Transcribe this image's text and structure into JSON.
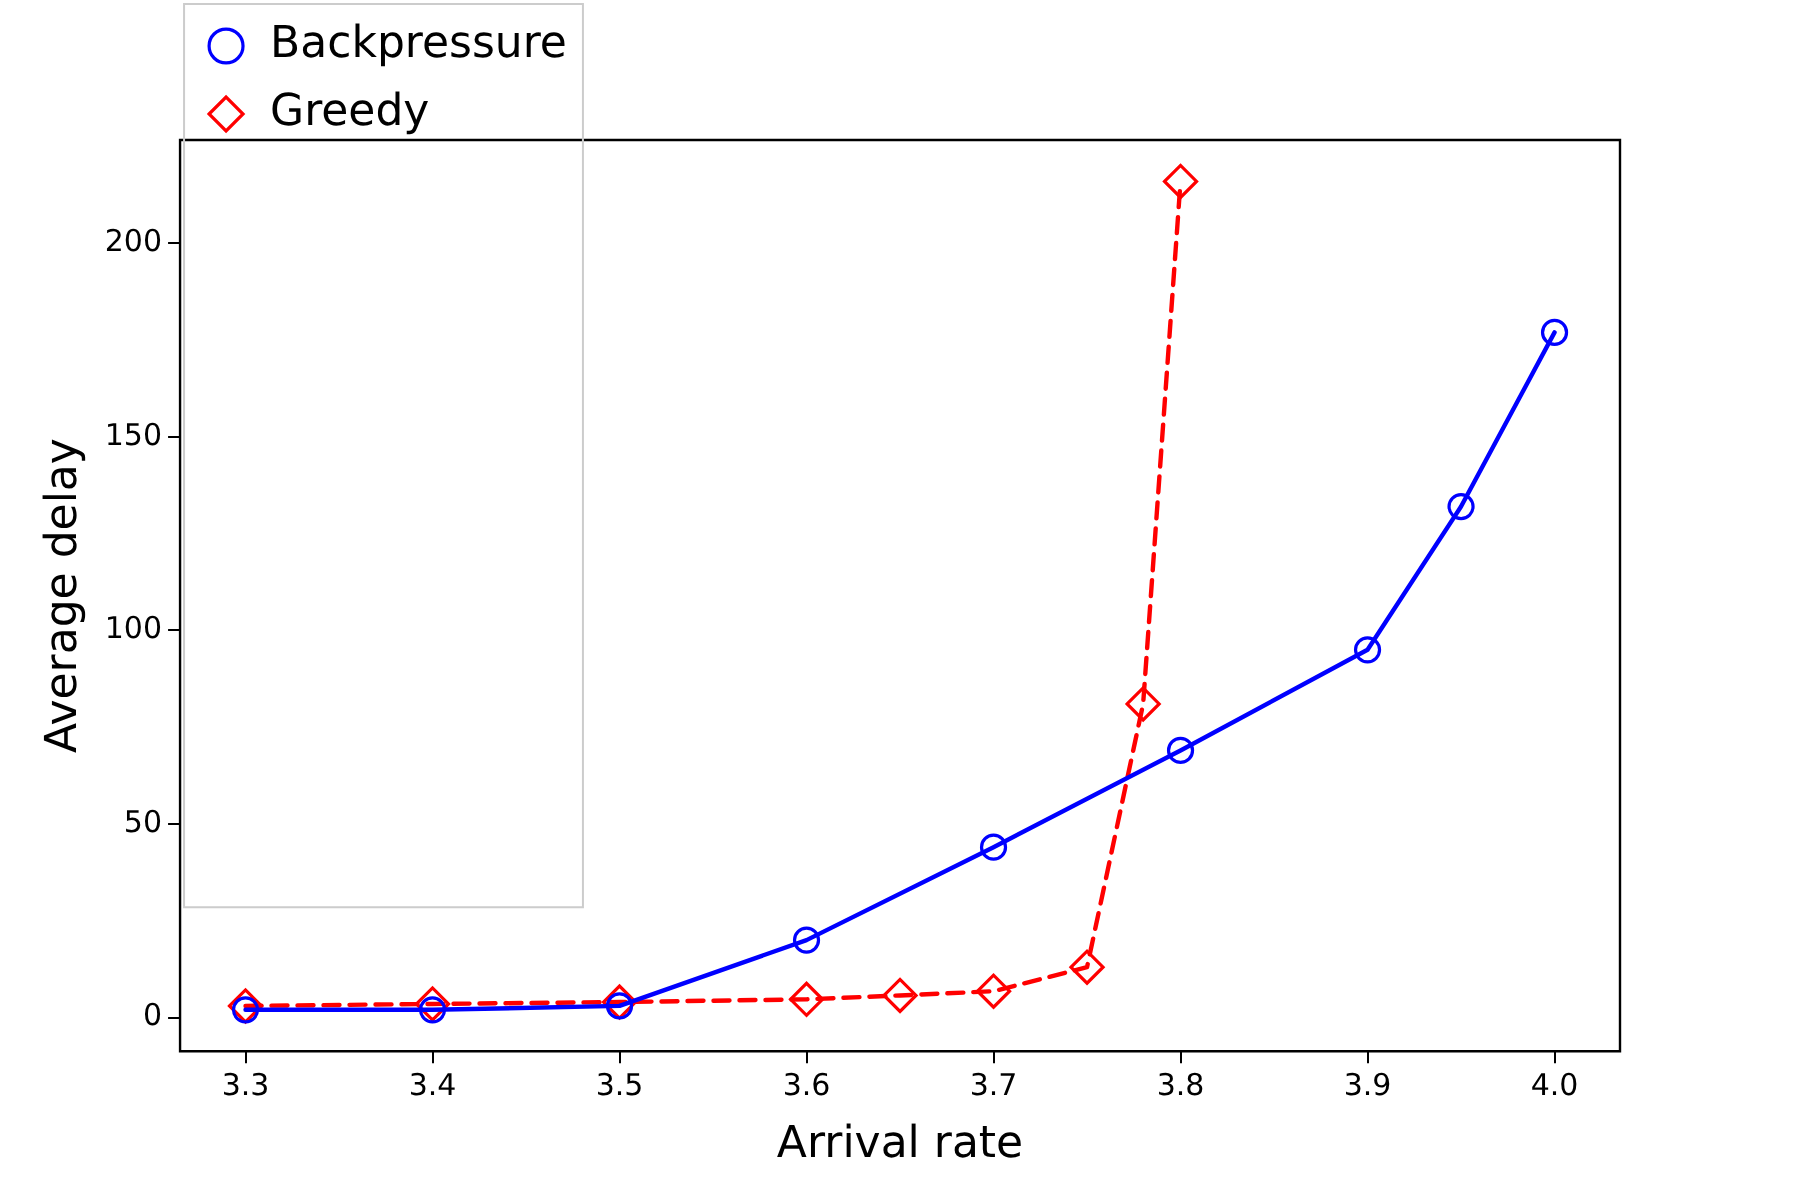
{
  "chart_data": {
    "type": "line",
    "xlabel": "Arrival rate",
    "ylabel": "Average delay",
    "xlim": [
      3.265,
      4.035
    ],
    "xticks": [
      3.3,
      3.4,
      3.5,
      3.6,
      3.7,
      3.8,
      3.9,
      {
        "value": 4,
        "label": "4.0"
      }
    ],
    "ylim": [
      -8.7,
      226.7
    ],
    "yticks": [
      0,
      50,
      100,
      150,
      200
    ],
    "grid": false,
    "legend": "top left",
    "series": [
      {
        "name": "Backpressure",
        "color": "#0000ff",
        "marker": "circle",
        "line_style": "solid",
        "x": [
          3.3,
          3.4,
          3.5,
          3.6,
          3.7,
          3.8,
          3.9,
          3.95,
          4.0
        ],
        "values": [
          2,
          2,
          3,
          20,
          44,
          69,
          95,
          132,
          177
        ]
      },
      {
        "name": "Greedy",
        "color": "#ff0000",
        "marker": "diamond",
        "line_style": "dashed",
        "x": [
          3.3,
          3.4,
          3.5,
          3.6,
          3.65,
          3.7,
          3.75,
          3.78,
          3.8
        ],
        "values": [
          3,
          3.5,
          4,
          4.7,
          5.7,
          6.8,
          13,
          81,
          216
        ]
      }
    ]
  }
}
